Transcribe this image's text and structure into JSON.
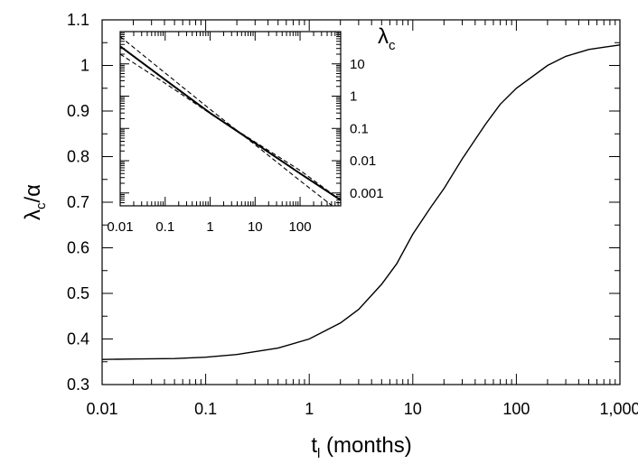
{
  "chart_data": [
    {
      "type": "line",
      "title": "",
      "xlabel": "t",
      "xlabel_sub": "l",
      "xlabel_suffix": " (months)",
      "ylabel": "λ",
      "ylabel_sub": "c",
      "ylabel_suffix": "/α",
      "xscale": "log",
      "xlim": [
        0.01,
        1000
      ],
      "ylim": [
        0.3,
        1.1
      ],
      "x_ticks": [
        {
          "value": 0.01,
          "label": "0.01"
        },
        {
          "value": 0.1,
          "label": "0.1"
        },
        {
          "value": 1,
          "label": "1"
        },
        {
          "value": 10,
          "label": "10"
        },
        {
          "value": 100,
          "label": "100"
        },
        {
          "value": 1000,
          "label": "1,000"
        }
      ],
      "y_ticks": [
        {
          "value": 0.3,
          "label": "0.3"
        },
        {
          "value": 0.4,
          "label": "0.4"
        },
        {
          "value": 0.5,
          "label": "0.5"
        },
        {
          "value": 0.6,
          "label": "0.6"
        },
        {
          "value": 0.7,
          "label": "0.7"
        },
        {
          "value": 0.8,
          "label": "0.8"
        },
        {
          "value": 0.9,
          "label": "0.9"
        },
        {
          "value": 1.0,
          "label": "1"
        },
        {
          "value": 1.1,
          "label": "1.1"
        }
      ],
      "grid": false,
      "series": [
        {
          "x": [
            0.01,
            0.02,
            0.05,
            0.1,
            0.2,
            0.5,
            1,
            2,
            3,
            5,
            7,
            10,
            15,
            20,
            30,
            50,
            70,
            100,
            200,
            300,
            500,
            700,
            1000
          ],
          "y": [
            0.355,
            0.356,
            0.357,
            0.36,
            0.366,
            0.38,
            0.4,
            0.435,
            0.465,
            0.52,
            0.565,
            0.63,
            0.69,
            0.73,
            0.795,
            0.87,
            0.915,
            0.95,
            1.0,
            1.02,
            1.035,
            1.04,
            1.045
          ]
        }
      ]
    },
    {
      "type": "line",
      "title": "",
      "ylabel": "λ",
      "ylabel_sub": "c",
      "xscale": "log",
      "yscale": "log",
      "xlim": [
        0.01,
        800
      ],
      "ylim": [
        0.0004,
        100
      ],
      "x_ticks": [
        {
          "value": 0.01,
          "label": "0.01"
        },
        {
          "value": 0.1,
          "label": "0.1"
        },
        {
          "value": 1,
          "label": "1"
        },
        {
          "value": 10,
          "label": "10"
        },
        {
          "value": 100,
          "label": "100"
        }
      ],
      "y_ticks": [
        {
          "value": 0.001,
          "label": "0.001"
        },
        {
          "value": 0.01,
          "label": "0.01"
        },
        {
          "value": 0.1,
          "label": "0.1"
        },
        {
          "value": 1,
          "label": "1"
        },
        {
          "value": 10,
          "label": "10"
        }
      ],
      "grid": false,
      "series": [
        {
          "style": "solid",
          "x": [
            0.01,
            0.1,
            1,
            10,
            100,
            800
          ],
          "y": [
            35,
            3.2,
            0.3,
            0.035,
            0.004,
            0.0006
          ]
        },
        {
          "style": "dashed",
          "x": [
            0.01,
            0.1,
            1,
            10,
            100,
            800
          ],
          "y": [
            70,
            5.2,
            0.39,
            0.031,
            0.0024,
            0.00025
          ]
        },
        {
          "style": "dashed",
          "x": [
            0.01,
            0.1,
            1,
            10,
            100,
            800
          ],
          "y": [
            20,
            2.5,
            0.29,
            0.038,
            0.005,
            0.0006
          ]
        }
      ]
    }
  ]
}
